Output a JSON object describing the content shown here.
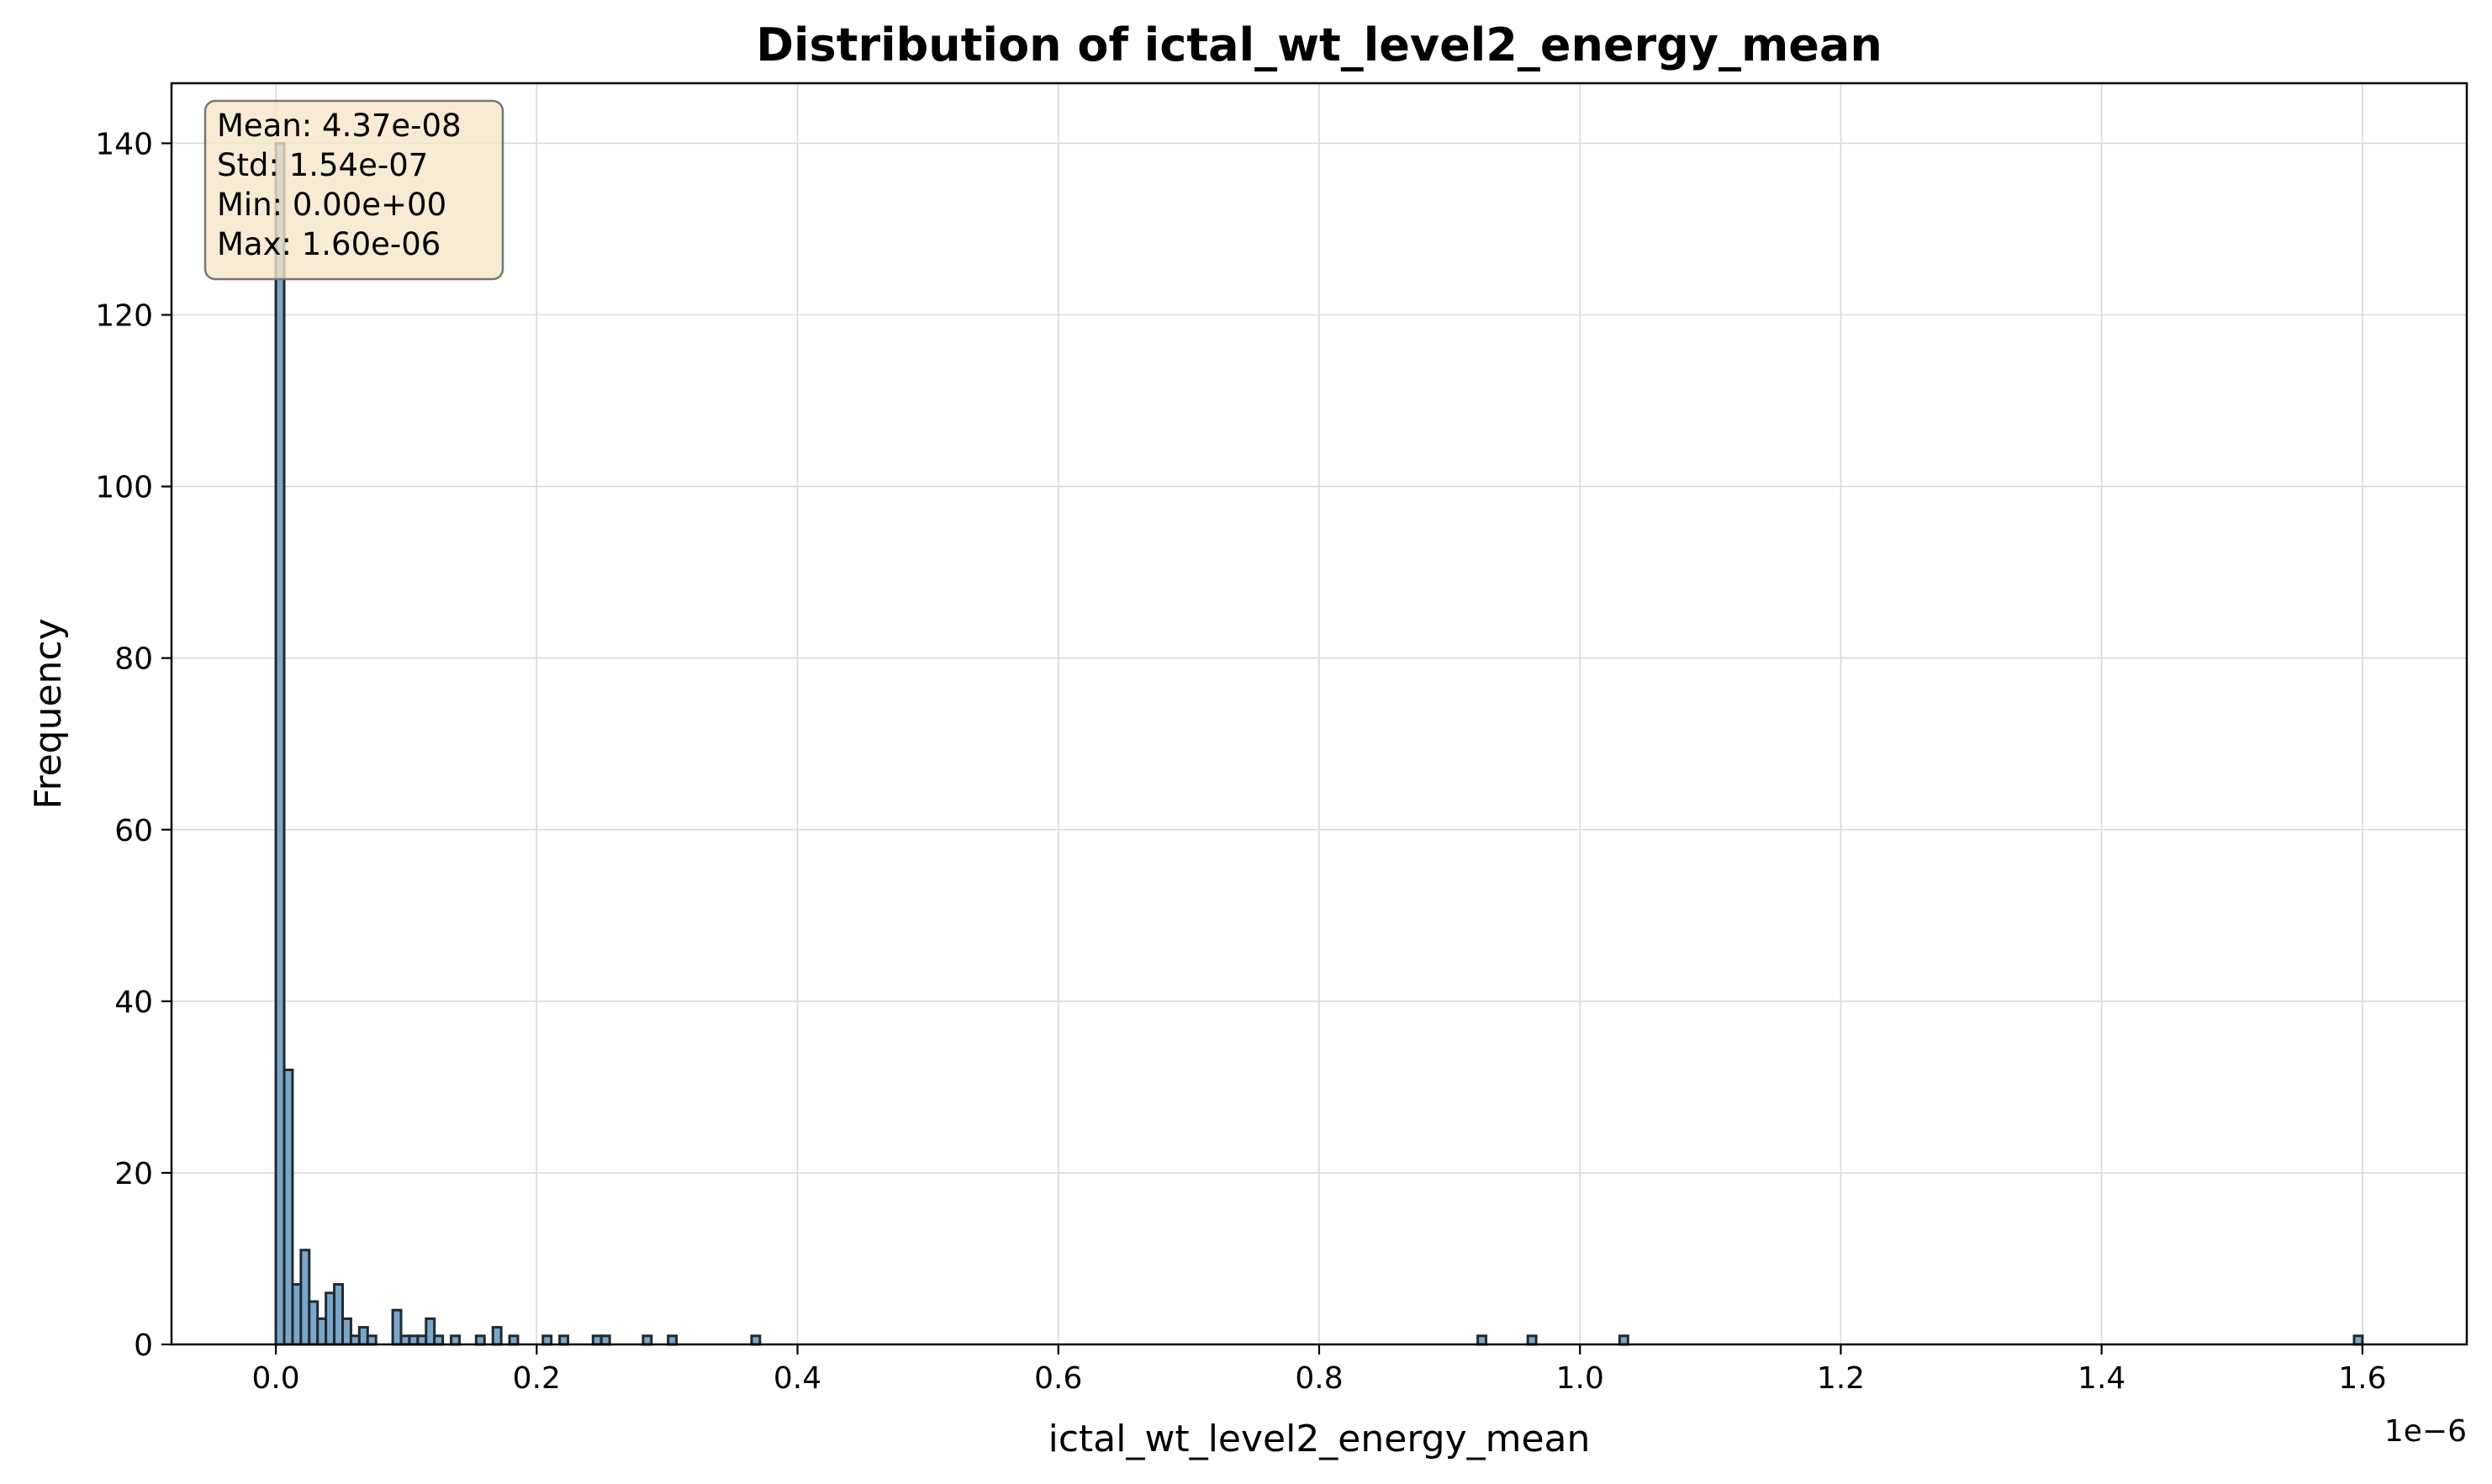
{
  "chart_data": {
    "type": "bar",
    "title": "Distribution of ictal_wt_level2_energy_mean",
    "xlabel": "ictal_wt_level2_energy_mean",
    "ylabel": "Frequency",
    "x_scale_label": "1e−6",
    "x_scale": 1e-06,
    "xlim": [
      -0.08,
      1.68
    ],
    "ylim": [
      0,
      147
    ],
    "x_ticks": [
      0.0,
      0.2,
      0.4,
      0.6,
      0.8,
      1.0,
      1.2,
      1.4,
      1.6
    ],
    "x_tick_labels": [
      "0.0",
      "0.2",
      "0.4",
      "0.6",
      "0.8",
      "1.0",
      "1.2",
      "1.4",
      "1.6"
    ],
    "y_ticks": [
      0,
      20,
      40,
      60,
      80,
      100,
      120,
      140
    ],
    "y_tick_labels": [
      "0",
      "20",
      "40",
      "60",
      "80",
      "100",
      "120",
      "140"
    ],
    "grid": true,
    "bar_color": "#7aa6c8",
    "edge_color": "#1f2a33",
    "bin_width": 0.0064,
    "bins": [
      {
        "x": 0.0,
        "count": 140
      },
      {
        "x": 0.0064,
        "count": 32
      },
      {
        "x": 0.0128,
        "count": 7
      },
      {
        "x": 0.0192,
        "count": 11
      },
      {
        "x": 0.0256,
        "count": 5
      },
      {
        "x": 0.032,
        "count": 3
      },
      {
        "x": 0.0384,
        "count": 6
      },
      {
        "x": 0.0448,
        "count": 7
      },
      {
        "x": 0.0512,
        "count": 3
      },
      {
        "x": 0.0576,
        "count": 1
      },
      {
        "x": 0.064,
        "count": 2
      },
      {
        "x": 0.0704,
        "count": 1
      },
      {
        "x": 0.0896,
        "count": 4
      },
      {
        "x": 0.096,
        "count": 1
      },
      {
        "x": 0.1024,
        "count": 1
      },
      {
        "x": 0.1088,
        "count": 1
      },
      {
        "x": 0.1152,
        "count": 3
      },
      {
        "x": 0.1216,
        "count": 1
      },
      {
        "x": 0.1344,
        "count": 1
      },
      {
        "x": 0.1536,
        "count": 1
      },
      {
        "x": 0.1664,
        "count": 2
      },
      {
        "x": 0.1792,
        "count": 1
      },
      {
        "x": 0.2048,
        "count": 1
      },
      {
        "x": 0.2176,
        "count": 1
      },
      {
        "x": 0.2432,
        "count": 1
      },
      {
        "x": 0.2496,
        "count": 1
      },
      {
        "x": 0.2816,
        "count": 1
      },
      {
        "x": 0.3008,
        "count": 1
      },
      {
        "x": 0.3648,
        "count": 1
      },
      {
        "x": 0.9216,
        "count": 1
      },
      {
        "x": 0.96,
        "count": 1
      },
      {
        "x": 1.0304,
        "count": 1
      },
      {
        "x": 1.5936,
        "count": 1
      }
    ],
    "stats_box": {
      "lines": [
        "Mean: 4.37e-08",
        "Std: 1.54e-07",
        "Min: 0.00e+00",
        "Max: 1.60e-06"
      ],
      "placement": "top-left",
      "background": "#f5e6c8",
      "border": "#777777"
    }
  }
}
